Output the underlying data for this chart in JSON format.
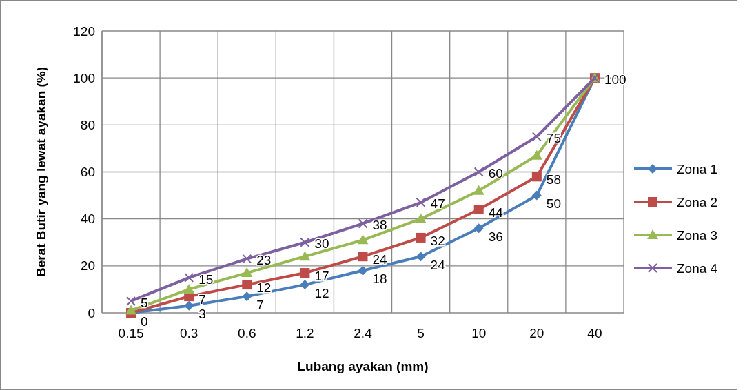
{
  "chart_data": {
    "type": "line",
    "xlabel": "Lubang ayakan (mm)",
    "ylabel": "Berat Butir yang lewat ayakan (%)",
    "categories": [
      "0.15",
      "0.3",
      "0.6",
      "1.2",
      "2.4",
      "5",
      "10",
      "20",
      "40"
    ],
    "ylim": [
      0,
      120
    ],
    "yticks": [
      0,
      20,
      40,
      60,
      80,
      100,
      120
    ],
    "grid": true,
    "legend": "right",
    "series": [
      {
        "name": "Zona 1",
        "color": "#4a7ebb",
        "marker": "diamond",
        "values": [
          0,
          3,
          7,
          12,
          18,
          24,
          36,
          50,
          100
        ],
        "value_labels": [
          "0",
          "3",
          "7",
          "12",
          "18",
          "24",
          "36",
          "50",
          null
        ]
      },
      {
        "name": "Zona 2",
        "color": "#be4b48",
        "marker": "square",
        "values": [
          0,
          7,
          12,
          17,
          24,
          32,
          44,
          58,
          100
        ],
        "value_labels": [
          null,
          "7",
          "12",
          "17",
          "24",
          "32",
          "44",
          "58",
          null
        ]
      },
      {
        "name": "Zona 3",
        "color": "#98b954",
        "marker": "triangle",
        "values": [
          1,
          10,
          17,
          24,
          31,
          40,
          52,
          67,
          100
        ]
      },
      {
        "name": "Zona 4",
        "color": "#7d60a0",
        "marker": "cross",
        "values": [
          5,
          15,
          23,
          30,
          38,
          47,
          60,
          75,
          100
        ],
        "value_labels": [
          "5",
          "15",
          "23",
          "30",
          "38",
          "47",
          "60",
          "75",
          "100"
        ]
      }
    ]
  }
}
